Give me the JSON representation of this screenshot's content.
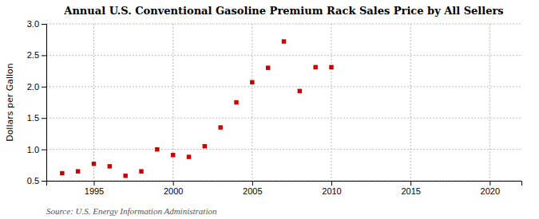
{
  "chart_data": {
    "type": "scatter",
    "title": "Annual U.S. Conventional Gasoline Premium Rack Sales Price by All Sellers",
    "y_label": "Dollars per Gallon",
    "annotations": [
      "Source: U.S. Energy Information Administration"
    ],
    "x": [
      1993,
      1994,
      1995,
      1996,
      1997,
      1998,
      1999,
      2000,
      2001,
      2002,
      2003,
      2004,
      2005,
      2006,
      2007,
      2008,
      2009,
      2010
    ],
    "values": [
      0.62,
      0.65,
      0.77,
      0.73,
      0.58,
      0.65,
      1.0,
      0.91,
      0.88,
      1.05,
      1.35,
      1.75,
      2.07,
      2.3,
      2.72,
      1.93,
      2.31,
      2.31
    ],
    "color": "#cc0000",
    "marker": "square",
    "xlim": [
      1992,
      2022
    ],
    "xticks": [
      1995,
      2000,
      2005,
      2010,
      2015,
      2020
    ],
    "ylim": [
      0.5,
      3.0
    ],
    "yticks": [
      0.5,
      {
        "value": 1.0,
        "label": "1.0"
      },
      1.5,
      {
        "value": 2.0,
        "label": "2.0"
      },
      2.5,
      {
        "value": 3.0,
        "label": "3.0"
      }
    ],
    "grid": true
  }
}
